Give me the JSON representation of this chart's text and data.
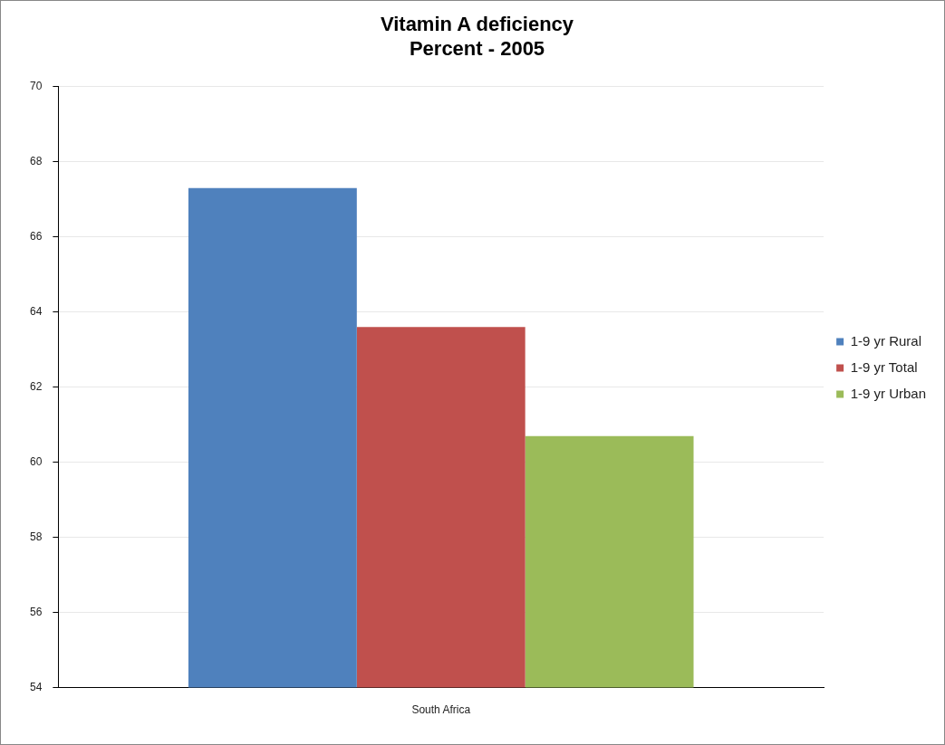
{
  "chart_data": {
    "type": "bar",
    "title": "Vitamin A deficiency\nPercent - 2005",
    "categories": [
      "South Africa"
    ],
    "series": [
      {
        "name": "1-9 yr Rural",
        "color": "#4f81bd",
        "values": [
          67.3
        ]
      },
      {
        "name": "1-9 yr Total",
        "color": "#c0504d",
        "values": [
          63.6
        ]
      },
      {
        "name": "1-9 yr Urban",
        "color": "#9bbb59",
        "values": [
          60.7
        ]
      }
    ],
    "ylim": [
      54,
      70
    ],
    "yticks": [
      54,
      56,
      58,
      60,
      62,
      64,
      66,
      68,
      70
    ],
    "grid": "y",
    "legend": "right"
  }
}
